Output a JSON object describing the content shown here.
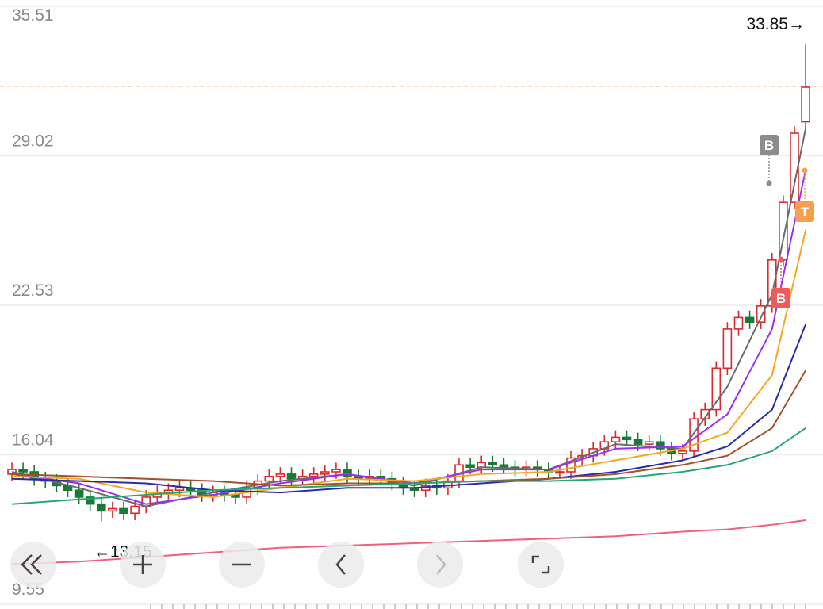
{
  "chart_data": {
    "type": "candlestick",
    "ylim": [
      9.55,
      35.51
    ],
    "yticks": [
      35.51,
      29.02,
      22.53,
      16.04,
      9.55
    ],
    "grid": true,
    "up_color": "#d92b2f",
    "down_color": "#197a35",
    "reference_line": 32.04,
    "open": [
      15.2,
      15.4,
      15.3,
      15.0,
      14.9,
      14.7,
      14.5,
      14.2,
      13.9,
      13.6,
      13.7,
      13.5,
      13.8,
      14.2,
      14.4,
      14.5,
      14.6,
      14.5,
      14.3,
      14.4,
      14.3,
      14.2,
      14.6,
      14.9,
      15.1,
      15.2,
      15.0,
      15.1,
      15.2,
      15.3,
      15.4,
      15.1,
      15.0,
      15.1,
      15.0,
      14.8,
      14.6,
      14.5,
      14.7,
      14.6,
      14.9,
      15.6,
      15.5,
      15.7,
      15.6,
      15.5,
      15.4,
      15.5,
      15.4,
      15.3,
      15.3,
      15.9,
      16.0,
      16.3,
      16.6,
      16.8,
      16.7,
      16.5,
      16.6,
      16.3,
      16.1,
      16.2,
      17.6,
      18.0,
      19.8,
      21.5,
      22.0,
      21.8,
      22.5,
      24.5,
      27.0,
      30.5
    ],
    "high": [
      15.7,
      15.7,
      15.6,
      15.3,
      15.2,
      15.0,
      14.8,
      14.5,
      14.2,
      14.0,
      14.0,
      14.1,
      14.5,
      14.7,
      14.8,
      14.9,
      14.9,
      14.8,
      14.7,
      14.7,
      14.6,
      14.9,
      15.2,
      15.4,
      15.5,
      15.5,
      15.4,
      15.5,
      15.6,
      15.7,
      15.7,
      15.4,
      15.4,
      15.4,
      15.3,
      15.1,
      14.9,
      15.0,
      15.0,
      15.2,
      15.9,
      15.9,
      16.0,
      16.0,
      15.9,
      15.8,
      15.8,
      15.8,
      15.7,
      15.6,
      16.2,
      16.3,
      16.6,
      16.9,
      17.1,
      17.1,
      17.0,
      16.9,
      16.9,
      16.6,
      16.5,
      17.9,
      18.3,
      20.1,
      21.8,
      22.3,
      22.3,
      22.8,
      24.8,
      27.3,
      30.3,
      33.85
    ],
    "low": [
      14.9,
      15.0,
      14.7,
      14.6,
      14.4,
      14.2,
      13.9,
      13.6,
      13.15,
      13.3,
      13.2,
      13.2,
      13.5,
      13.9,
      14.1,
      14.2,
      14.2,
      14.0,
      14.0,
      14.0,
      13.9,
      13.9,
      14.3,
      14.6,
      14.8,
      14.7,
      14.7,
      14.8,
      14.9,
      15.0,
      14.8,
      14.7,
      14.7,
      14.7,
      14.5,
      14.3,
      14.2,
      14.2,
      14.3,
      14.3,
      14.6,
      15.2,
      15.2,
      15.3,
      15.2,
      15.1,
      15.1,
      15.1,
      15.0,
      15.0,
      15.0,
      15.6,
      15.7,
      16.0,
      16.3,
      16.4,
      16.2,
      16.2,
      16.0,
      15.8,
      15.8,
      15.9,
      17.3,
      17.7,
      19.5,
      21.2,
      21.5,
      21.5,
      22.2,
      24.2,
      26.7,
      30.2
    ],
    "close": [
      15.4,
      15.3,
      15.0,
      14.9,
      14.7,
      14.5,
      14.2,
      13.9,
      13.6,
      13.7,
      13.5,
      13.8,
      14.2,
      14.4,
      14.5,
      14.6,
      14.5,
      14.3,
      14.4,
      14.3,
      14.2,
      14.6,
      14.9,
      15.1,
      15.2,
      15.0,
      15.1,
      15.2,
      15.3,
      15.4,
      15.1,
      15.0,
      15.1,
      15.0,
      14.8,
      14.6,
      14.5,
      14.7,
      14.6,
      14.9,
      15.6,
      15.5,
      15.7,
      15.6,
      15.5,
      15.4,
      15.5,
      15.4,
      15.3,
      15.3,
      15.9,
      16.0,
      16.3,
      16.6,
      16.8,
      16.7,
      16.5,
      16.6,
      16.3,
      16.1,
      16.2,
      17.6,
      18.0,
      19.8,
      21.5,
      22.0,
      21.8,
      22.5,
      24.5,
      27.0,
      30.0,
      32.0
    ],
    "series": [
      {
        "color": "#6b6b6b",
        "x": [
          0,
          6,
          12,
          18,
          24,
          30,
          36,
          42,
          48,
          54,
          60,
          64,
          68,
          71
        ],
        "values": [
          15.3,
          14.6,
          13.8,
          14.4,
          14.9,
          15.2,
          14.7,
          15.5,
          15.4,
          16.5,
          16.3,
          19.0,
          23.0,
          30.2
        ]
      },
      {
        "color": "#9b30f0",
        "x": [
          0,
          6,
          12,
          18,
          24,
          30,
          36,
          42,
          48,
          54,
          60,
          64,
          68,
          71
        ],
        "values": [
          15.2,
          14.8,
          13.9,
          14.3,
          14.8,
          15.2,
          14.8,
          15.4,
          15.4,
          16.3,
          16.4,
          17.8,
          21.5,
          28.4
        ]
      },
      {
        "color": "#f5a623",
        "x": [
          0,
          6,
          12,
          18,
          24,
          30,
          36,
          42,
          48,
          54,
          60,
          64,
          68,
          71
        ],
        "values": [
          15.1,
          15.0,
          14.4,
          14.2,
          14.6,
          15.0,
          14.9,
          15.2,
          15.3,
          15.8,
          16.3,
          17.0,
          19.5,
          25.8
        ]
      },
      {
        "color": "#2b2ba8",
        "x": [
          0,
          6,
          12,
          18,
          24,
          30,
          36,
          42,
          48,
          54,
          60,
          64,
          68,
          71
        ],
        "values": [
          15.0,
          14.9,
          14.8,
          14.5,
          14.4,
          14.6,
          14.6,
          14.8,
          15.0,
          15.3,
          15.8,
          16.4,
          18.0,
          21.7
        ]
      },
      {
        "color": "#a0522d",
        "x": [
          0,
          6,
          12,
          18,
          24,
          30,
          36,
          42,
          48,
          54,
          60,
          64,
          68,
          71
        ],
        "values": [
          15.2,
          15.1,
          15.0,
          14.9,
          14.7,
          14.8,
          14.8,
          14.9,
          15.0,
          15.2,
          15.6,
          16.0,
          17.2,
          19.7
        ]
      },
      {
        "color": "#25a86f",
        "x": [
          0,
          6,
          12,
          18,
          24,
          30,
          36,
          42,
          48,
          54,
          60,
          64,
          68,
          71
        ],
        "values": [
          13.9,
          14.1,
          14.3,
          14.5,
          14.6,
          14.7,
          14.8,
          14.9,
          14.9,
          15.0,
          15.3,
          15.6,
          16.2,
          17.2
        ]
      },
      {
        "color": "#f0607a",
        "x": [
          0,
          6,
          12,
          18,
          24,
          30,
          36,
          42,
          48,
          54,
          60,
          64,
          68,
          71
        ],
        "values": [
          11.3,
          11.4,
          11.6,
          11.8,
          12.0,
          12.1,
          12.2,
          12.3,
          12.4,
          12.5,
          12.7,
          12.8,
          13.0,
          13.2
        ]
      }
    ],
    "annotations": [
      {
        "value": 33.85,
        "label": "33.85→"
      },
      {
        "value": 13.15,
        "label": "←13.15"
      }
    ],
    "markers": [
      {
        "label": "B",
        "color": "#8c8c8c"
      },
      {
        "label": "B",
        "color": "#ef5a5a"
      },
      {
        "label": "T",
        "color": "#f5a04a"
      }
    ]
  }
}
